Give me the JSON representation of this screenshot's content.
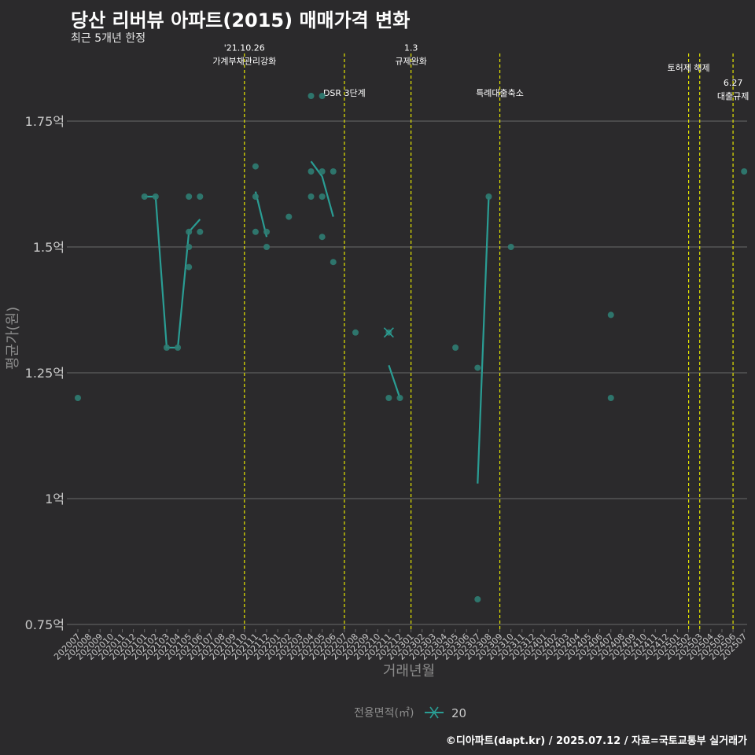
{
  "title": "당산 리버뷰 아파트(2015) 매매가격 변화",
  "subtitle": "최근 5개년 한정",
  "caption": "©디아파트(dapt.kr) / 2025.07.12 / 자료=국토교통부 실거래가",
  "colors": {
    "background": "#2b2a2c",
    "grid": "#6a6a6a",
    "series": "#2a9d94",
    "point": "#2f7d73",
    "event_line": "#e6e600",
    "axis_text": "#c8c8c8",
    "label_text": "#8c8c8c"
  },
  "chart_data": {
    "type": "line",
    "title": "당산 리버뷰 아파트(2015) 매매가격 변화",
    "xlabel": "거래년월",
    "ylabel": "평균가(원)",
    "ylim": [
      0.75,
      1.98
    ],
    "y_ticks": [
      0.75,
      1.0,
      1.25,
      1.5,
      1.75
    ],
    "y_tick_labels": [
      "0.75억",
      "1억",
      "1.25억",
      "1.5억",
      "1.75억"
    ],
    "categories": [
      "202007",
      "202008",
      "202009",
      "202010",
      "202011",
      "202012",
      "202101",
      "202102",
      "202103",
      "202104",
      "202105",
      "202106",
      "202107",
      "202108",
      "202109",
      "202110",
      "202111",
      "202112",
      "202201",
      "202202",
      "202203",
      "202204",
      "202205",
      "202206",
      "202207",
      "202208",
      "202209",
      "202210",
      "202211",
      "202212",
      "202301",
      "202302",
      "202303",
      "202304",
      "202305",
      "202306",
      "202307",
      "202308",
      "202309",
      "202310",
      "202311",
      "202312",
      "202401",
      "202402",
      "202403",
      "202404",
      "202405",
      "202406",
      "202407",
      "202408",
      "202409",
      "202410",
      "202411",
      "202412",
      "202501",
      "202502",
      "202503",
      "202504",
      "202505",
      "202506",
      "202507"
    ],
    "legend": {
      "title": "전용면적(㎡)",
      "label": "20"
    },
    "series": [
      {
        "name": "20",
        "line": [
          {
            "x": 6,
            "y": 1.6
          },
          {
            "x": 7,
            "y": 1.6
          },
          {
            "x": 8,
            "y": 1.3
          },
          {
            "x": 9,
            "y": 1.3
          },
          {
            "x": 10,
            "y": 1.53
          },
          {
            "x": 11,
            "y": 1.555
          }
        ],
        "line_segments": [
          [
            {
              "x": 16,
              "y": 1.61
            },
            {
              "x": 17,
              "y": 1.52
            }
          ],
          [
            {
              "x": 21,
              "y": 1.67
            },
            {
              "x": 22,
              "y": 1.64
            },
            {
              "x": 23,
              "y": 1.56
            }
          ],
          [
            {
              "x": 28,
              "y": 1.265
            },
            {
              "x": 29,
              "y": 1.2
            }
          ],
          [
            {
              "x": 36,
              "y": 1.03
            },
            {
              "x": 37,
              "y": 1.6
            }
          ]
        ],
        "points": [
          {
            "x": 0,
            "y": 1.2
          },
          {
            "x": 6,
            "y": 1.6
          },
          {
            "x": 7,
            "y": 1.6
          },
          {
            "x": 8,
            "y": 1.3
          },
          {
            "x": 9,
            "y": 1.3
          },
          {
            "x": 10,
            "y": 1.6
          },
          {
            "x": 10,
            "y": 1.53
          },
          {
            "x": 10,
            "y": 1.5
          },
          {
            "x": 10,
            "y": 1.46
          },
          {
            "x": 11,
            "y": 1.6
          },
          {
            "x": 11,
            "y": 1.53
          },
          {
            "x": 16,
            "y": 1.66
          },
          {
            "x": 16,
            "y": 1.6
          },
          {
            "x": 16,
            "y": 1.53
          },
          {
            "x": 17,
            "y": 1.53
          },
          {
            "x": 17,
            "y": 1.5
          },
          {
            "x": 19,
            "y": 1.56
          },
          {
            "x": 21,
            "y": 1.8
          },
          {
            "x": 21,
            "y": 1.65
          },
          {
            "x": 21,
            "y": 1.6
          },
          {
            "x": 22,
            "y": 1.8
          },
          {
            "x": 22,
            "y": 1.65
          },
          {
            "x": 22,
            "y": 1.6
          },
          {
            "x": 22,
            "y": 1.52
          },
          {
            "x": 23,
            "y": 1.65
          },
          {
            "x": 23,
            "y": 1.47
          },
          {
            "x": 25,
            "y": 1.33
          },
          {
            "x": 28,
            "y": 1.33
          },
          {
            "x": 28,
            "y": 1.2
          },
          {
            "x": 29,
            "y": 1.2
          },
          {
            "x": 34,
            "y": 1.3
          },
          {
            "x": 36,
            "y": 1.26
          },
          {
            "x": 36,
            "y": 0.8
          },
          {
            "x": 37,
            "y": 1.6
          },
          {
            "x": 39,
            "y": 1.5
          },
          {
            "x": 48,
            "y": 1.365
          },
          {
            "x": 48,
            "y": 1.2
          },
          {
            "x": 60,
            "y": 1.65
          }
        ],
        "marker": {
          "x": 28,
          "y": 1.33
        }
      }
    ],
    "events": [
      {
        "x": 15,
        "lines": [
          "'21.10.26",
          "가계부채관리강화"
        ],
        "label_y": 1.89
      },
      {
        "x": 24,
        "lines": [
          "DSR 3단계"
        ],
        "label_y": 1.8
      },
      {
        "x": 30,
        "lines": [
          "1.3",
          "규제완화"
        ],
        "label_y": 1.89
      },
      {
        "x": 38,
        "lines": [
          "특례대출축소"
        ],
        "label_y": 1.8
      },
      {
        "x": 55,
        "lines": [
          "토허제 해제"
        ],
        "label_y": 1.85
      },
      {
        "x": 56,
        "lines": [],
        "label_y": 1.85
      },
      {
        "x": 59,
        "lines": [
          "6.27",
          "대출규제"
        ],
        "label_y": 1.82
      }
    ]
  }
}
